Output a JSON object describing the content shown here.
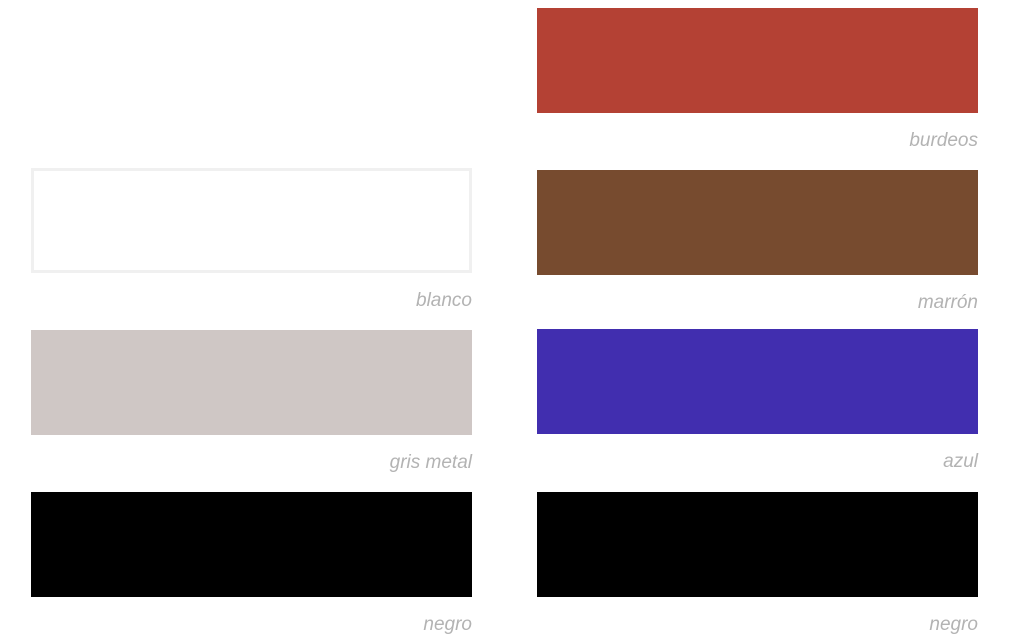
{
  "swatches": [
    {
      "label": "burdeos",
      "color": "#b44134",
      "outlined": false
    },
    {
      "label": "blanco",
      "color": "#ffffff",
      "outlined": true
    },
    {
      "label": "marrón",
      "color": "#774b2f",
      "outlined": false
    },
    {
      "label": "gris metal",
      "color": "#cfc7c5",
      "outlined": false
    },
    {
      "label": "azul",
      "color": "#412eaf",
      "outlined": false
    },
    {
      "label": "negro",
      "color": "#000000",
      "outlined": false
    },
    {
      "label": "negro",
      "color": "#000000",
      "outlined": false
    }
  ]
}
